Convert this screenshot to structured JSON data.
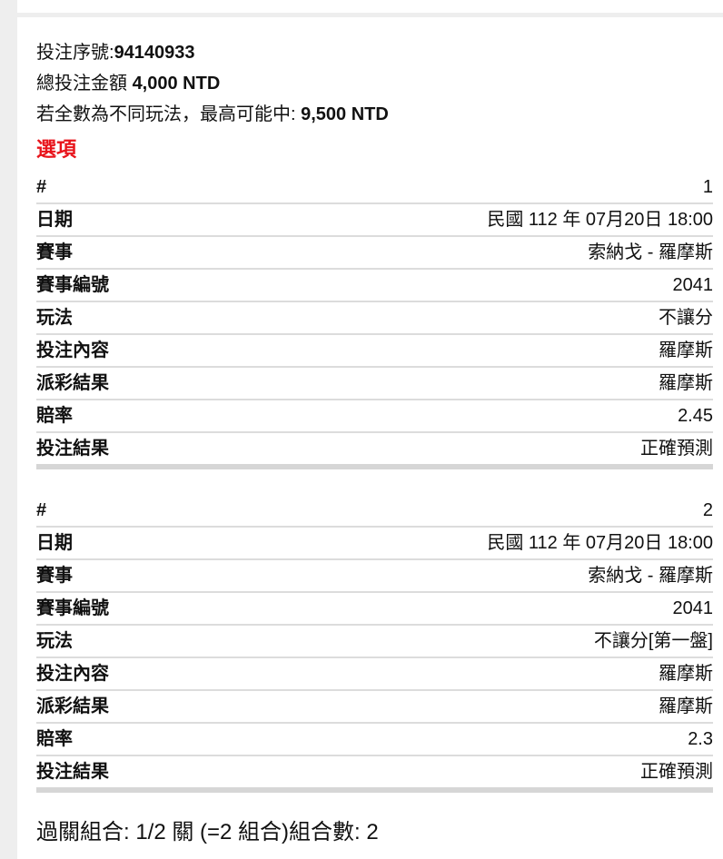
{
  "summary": {
    "bet_no_label": "投注序號:",
    "bet_no": "94140933",
    "total_label": "總投注金額 ",
    "total": "4,000 NTD",
    "max_label": "若全數為不同玩法，最高可能中: ",
    "max": "9,500 NTD"
  },
  "options_title": "選項",
  "selections": [
    {
      "rows": [
        {
          "k": "#",
          "v": "1"
        },
        {
          "k": "日期",
          "v": "民國 112 年 07月20日 18:00"
        },
        {
          "k": "賽事",
          "v": "索納戈 - 羅摩斯"
        },
        {
          "k": "賽事編號",
          "v": "2041"
        },
        {
          "k": "玩法",
          "v": "不讓分"
        },
        {
          "k": "投注內容",
          "v": "羅摩斯"
        },
        {
          "k": "派彩結果",
          "v": "羅摩斯"
        },
        {
          "k": "賠率",
          "v": "2.45"
        },
        {
          "k": "投注結果",
          "v": "正確預測"
        }
      ]
    },
    {
      "rows": [
        {
          "k": "#",
          "v": "2"
        },
        {
          "k": "日期",
          "v": "民國 112 年 07月20日 18:00"
        },
        {
          "k": "賽事",
          "v": "索納戈 - 羅摩斯"
        },
        {
          "k": "賽事編號",
          "v": "2041"
        },
        {
          "k": "玩法",
          "v": "不讓分[第一盤]"
        },
        {
          "k": "投注內容",
          "v": "羅摩斯"
        },
        {
          "k": "派彩結果",
          "v": "羅摩斯"
        },
        {
          "k": "賠率",
          "v": "2.3"
        },
        {
          "k": "投注結果",
          "v": "正確預測"
        }
      ]
    }
  ],
  "footer": "過關組合: 1/2 關 (=2 組合)組合數: 2",
  "colors": {
    "accent": "#e8141b",
    "background": "#eeeeee"
  }
}
